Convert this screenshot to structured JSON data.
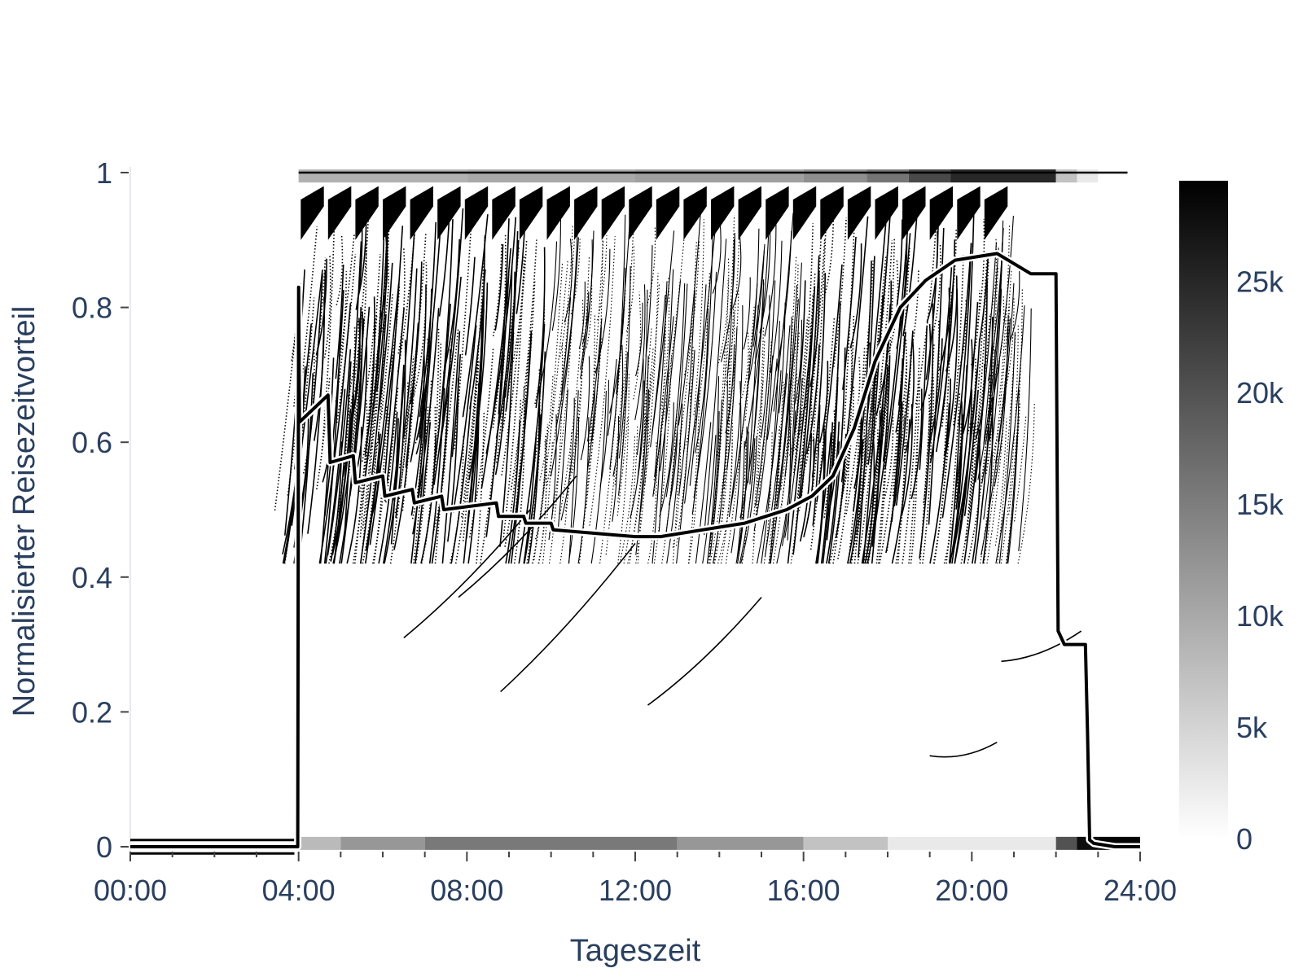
{
  "chart_data": {
    "type": "line",
    "xlabel": "Tageszeit",
    "ylabel": "Normalisierter Reisezeitvorteil",
    "x_unit": "hours",
    "xlim": [
      0,
      24
    ],
    "ylim": [
      0,
      1
    ],
    "x_ticks": [
      {
        "value": 0,
        "label": "00:00"
      },
      {
        "value": 4,
        "label": "04:00"
      },
      {
        "value": 8,
        "label": "08:00"
      },
      {
        "value": 12,
        "label": "12:00"
      },
      {
        "value": 16,
        "label": "16:00"
      },
      {
        "value": 20,
        "label": "20:00"
      },
      {
        "value": 24,
        "label": "24:00"
      }
    ],
    "y_ticks": [
      {
        "value": 0,
        "label": "0"
      },
      {
        "value": 0.2,
        "label": "0.2"
      },
      {
        "value": 0.4,
        "label": "0.4"
      },
      {
        "value": 0.6,
        "label": "0.6"
      },
      {
        "value": 0.8,
        "label": "0.8"
      },
      {
        "value": 1,
        "label": "1"
      }
    ],
    "colorbar": {
      "range": [
        0,
        29500
      ],
      "colors": [
        "#ffffff",
        "#000000"
      ],
      "ticks": [
        {
          "value": 0,
          "label": "0"
        },
        {
          "value": 5000,
          "label": "5k"
        },
        {
          "value": 10000,
          "label": "10k"
        },
        {
          "value": 15000,
          "label": "15k"
        },
        {
          "value": 20000,
          "label": "20k"
        },
        {
          "value": 25000,
          "label": "25k"
        }
      ]
    },
    "density_band_top": {
      "y": 0.995,
      "bins": [
        {
          "x0": 4,
          "x1": 8,
          "value": 9000
        },
        {
          "x0": 8,
          "x1": 12,
          "value": 10000
        },
        {
          "x0": 12,
          "x1": 16,
          "value": 11000
        },
        {
          "x0": 16,
          "x1": 17.5,
          "value": 13000
        },
        {
          "x0": 17.5,
          "x1": 18.5,
          "value": 16000
        },
        {
          "x0": 18.5,
          "x1": 19.5,
          "value": 21000
        },
        {
          "x0": 19.5,
          "x1": 22,
          "value": 25000
        },
        {
          "x0": 22,
          "x1": 22.5,
          "value": 7000
        },
        {
          "x0": 22.5,
          "x1": 23,
          "value": 2500
        }
      ]
    },
    "density_band_bottom": {
      "y": 0.005,
      "bins": [
        {
          "x0": 4,
          "x1": 5,
          "value": 8000
        },
        {
          "x0": 5,
          "x1": 7,
          "value": 12000
        },
        {
          "x0": 7,
          "x1": 13,
          "value": 15500
        },
        {
          "x0": 13,
          "x1": 16,
          "value": 12000
        },
        {
          "x0": 16,
          "x1": 18,
          "value": 7000
        },
        {
          "x0": 18,
          "x1": 22,
          "value": 2500
        },
        {
          "x0": 22,
          "x1": 22.5,
          "value": 20000
        },
        {
          "x0": 22.5,
          "x1": 23,
          "value": 28000
        },
        {
          "x0": 23,
          "x1": 24,
          "value": 29000
        }
      ]
    },
    "mean_line": {
      "x": [
        0,
        3.98,
        4,
        4.02,
        4.7,
        4.75,
        5.3,
        5.35,
        6,
        6.05,
        6.7,
        6.75,
        7.4,
        7.45,
        8.7,
        8.75,
        9.35,
        9.4,
        10,
        10.05,
        12,
        12.6,
        13.6,
        14.6,
        15.6,
        16.2,
        16.7,
        17.2,
        17.7,
        18.3,
        18.9,
        19.6,
        20.6,
        21.4,
        22,
        22.05,
        22.2,
        22.7,
        22.75,
        22.8,
        22.9,
        23.4,
        24
      ],
      "y": [
        0,
        0,
        0.83,
        0.63,
        0.67,
        0.57,
        0.58,
        0.54,
        0.55,
        0.52,
        0.53,
        0.51,
        0.52,
        0.5,
        0.51,
        0.49,
        0.49,
        0.48,
        0.48,
        0.47,
        0.46,
        0.46,
        0.47,
        0.48,
        0.5,
        0.52,
        0.55,
        0.62,
        0.72,
        0.8,
        0.84,
        0.87,
        0.88,
        0.85,
        0.85,
        0.32,
        0.3,
        0.3,
        0.17,
        0.01,
        0.005,
        0.0,
        0.0
      ]
    },
    "legend": "none",
    "grid": false
  }
}
